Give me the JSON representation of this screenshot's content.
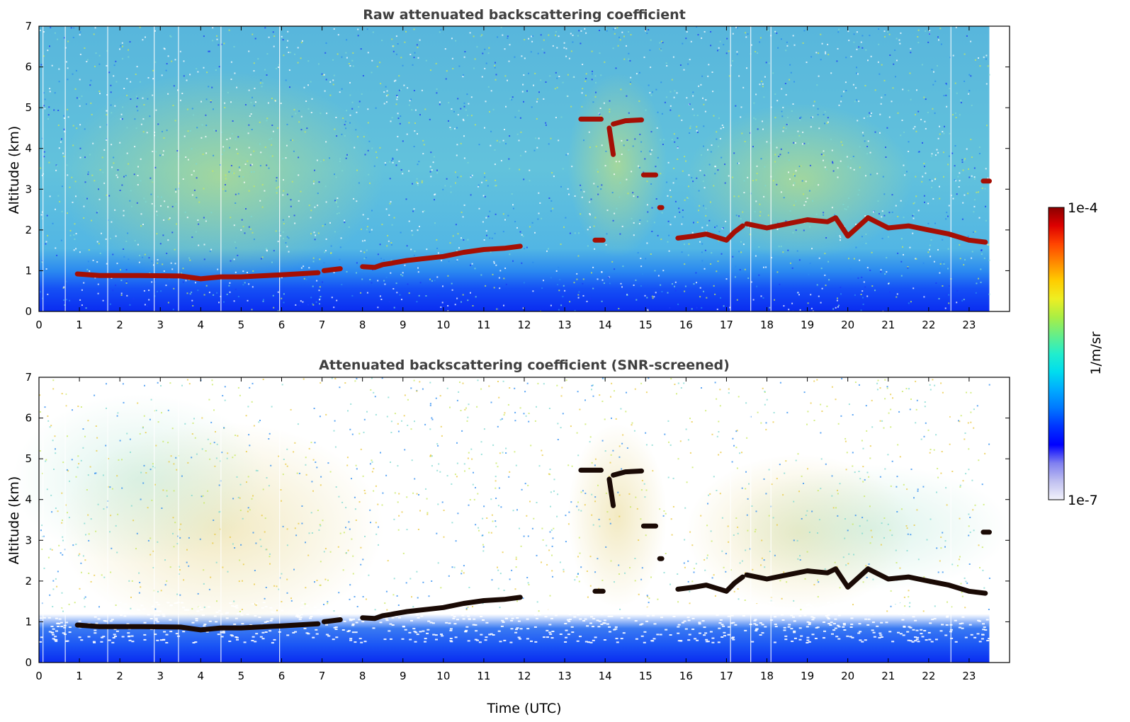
{
  "chart_data": [
    {
      "type": "heatmap",
      "title": "Raw attenuated backscattering coefficient",
      "xlabel": "",
      "ylabel": "Altitude (km)",
      "xlim": [
        0,
        24
      ],
      "ylim": [
        0,
        7
      ],
      "data_end_time": 23.5,
      "x_ticks": [
        "0",
        "1",
        "2",
        "3",
        "4",
        "5",
        "6",
        "7",
        "8",
        "9",
        "10",
        "11",
        "12",
        "13",
        "14",
        "15",
        "16",
        "17",
        "18",
        "19",
        "20",
        "21",
        "22",
        "23"
      ],
      "y_ticks": [
        "0",
        "1",
        "2",
        "3",
        "4",
        "5",
        "6",
        "7"
      ],
      "layer_color": "#a50f04",
      "layers": [
        {
          "x": [
            0.95,
            1.5,
            2.5,
            3.5,
            4.0,
            4.5,
            5.0,
            6.0,
            6.9
          ],
          "y": [
            0.92,
            0.88,
            0.88,
            0.87,
            0.8,
            0.85,
            0.85,
            0.9,
            0.95
          ]
        },
        {
          "x": [
            7.05,
            7.45
          ],
          "y": [
            1.0,
            1.05
          ]
        },
        {
          "x": [
            8.0,
            8.3,
            8.5,
            8.7,
            8.8,
            9.1,
            10.0,
            10.5,
            11.0,
            11.5,
            11.9
          ],
          "y": [
            1.1,
            1.08,
            1.15,
            1.18,
            1.2,
            1.25,
            1.35,
            1.45,
            1.52,
            1.55,
            1.6
          ]
        },
        {
          "x": [
            13.4,
            13.9
          ],
          "y": [
            4.72,
            4.72
          ]
        },
        {
          "x": [
            14.2,
            14.5,
            14.9
          ],
          "y": [
            4.6,
            4.68,
            4.7
          ]
        },
        {
          "x": [
            14.1,
            14.2
          ],
          "y": [
            4.5,
            3.85
          ]
        },
        {
          "x": [
            14.95,
            15.25
          ],
          "y": [
            3.35,
            3.35
          ]
        },
        {
          "x": [
            15.35,
            15.4
          ],
          "y": [
            2.55,
            2.55
          ]
        },
        {
          "x": [
            13.75,
            13.95
          ],
          "y": [
            1.75,
            1.75
          ]
        },
        {
          "x": [
            15.8,
            16.2,
            16.5,
            17.0,
            17.2,
            17.4
          ],
          "y": [
            1.8,
            1.85,
            1.9,
            1.75,
            1.95,
            2.1
          ]
        },
        {
          "x": [
            17.5,
            18.0,
            18.5,
            19.0,
            19.5,
            19.7,
            20.0,
            20.5,
            21.0,
            21.5,
            22.0,
            22.5,
            23.0,
            23.4
          ],
          "y": [
            2.15,
            2.05,
            2.15,
            2.25,
            2.2,
            2.3,
            1.85,
            2.3,
            2.05,
            2.1,
            2.0,
            1.9,
            1.75,
            1.7
          ]
        },
        {
          "x": [
            23.35,
            23.5
          ],
          "y": [
            3.2,
            3.2
          ]
        }
      ]
    },
    {
      "type": "heatmap",
      "title": "Attenuated backscattering coefficient (SNR-screened)",
      "xlabel": "Time (UTC)",
      "ylabel": "Altitude (km)",
      "xlim": [
        0,
        24
      ],
      "ylim": [
        0,
        7
      ],
      "data_end_time": 23.5,
      "x_ticks": [
        "0",
        "1",
        "2",
        "3",
        "4",
        "5",
        "6",
        "7",
        "8",
        "9",
        "10",
        "11",
        "12",
        "13",
        "14",
        "15",
        "16",
        "17",
        "18",
        "19",
        "20",
        "21",
        "22",
        "23"
      ],
      "y_ticks": [
        "0",
        "1",
        "2",
        "3",
        "4",
        "5",
        "6",
        "7"
      ],
      "layer_color": "#1a0a05",
      "layers": [
        {
          "x": [
            0.95,
            1.5,
            2.5,
            3.5,
            4.0,
            4.5,
            5.0,
            6.0,
            6.9
          ],
          "y": [
            0.92,
            0.88,
            0.88,
            0.87,
            0.8,
            0.85,
            0.85,
            0.9,
            0.95
          ]
        },
        {
          "x": [
            7.05,
            7.45
          ],
          "y": [
            1.0,
            1.05
          ]
        },
        {
          "x": [
            8.0,
            8.3,
            8.5,
            8.7,
            8.8,
            9.1,
            10.0,
            10.5,
            11.0,
            11.5,
            11.9
          ],
          "y": [
            1.1,
            1.08,
            1.15,
            1.18,
            1.2,
            1.25,
            1.35,
            1.45,
            1.52,
            1.55,
            1.6
          ]
        },
        {
          "x": [
            13.4,
            13.9
          ],
          "y": [
            4.72,
            4.72
          ]
        },
        {
          "x": [
            14.2,
            14.5,
            14.9
          ],
          "y": [
            4.6,
            4.68,
            4.7
          ]
        },
        {
          "x": [
            14.1,
            14.2
          ],
          "y": [
            4.5,
            3.85
          ]
        },
        {
          "x": [
            14.95,
            15.25
          ],
          "y": [
            3.35,
            3.35
          ]
        },
        {
          "x": [
            15.35,
            15.4
          ],
          "y": [
            2.55,
            2.55
          ]
        },
        {
          "x": [
            13.75,
            13.95
          ],
          "y": [
            1.75,
            1.75
          ]
        },
        {
          "x": [
            15.8,
            16.2,
            16.5,
            17.0,
            17.2,
            17.4
          ],
          "y": [
            1.8,
            1.85,
            1.9,
            1.75,
            1.95,
            2.1
          ]
        },
        {
          "x": [
            17.5,
            18.0,
            18.5,
            19.0,
            19.5,
            19.7,
            20.0,
            20.5,
            21.0,
            21.5,
            22.0,
            22.5,
            23.0,
            23.4
          ],
          "y": [
            2.15,
            2.05,
            2.15,
            2.25,
            2.2,
            2.3,
            1.85,
            2.3,
            2.05,
            2.1,
            2.0,
            1.9,
            1.75,
            1.7
          ]
        },
        {
          "x": [
            23.35,
            23.5
          ],
          "y": [
            3.2,
            3.2
          ]
        }
      ]
    }
  ],
  "colorbar": {
    "max_label": "1e-4",
    "min_label": "1e-7",
    "unit_label": "1/m/sr",
    "colormap": [
      "#f2f2fb",
      "#c0c0f0",
      "#8080f0",
      "#0000ff",
      "#0033ff",
      "#0077ff",
      "#00aaff",
      "#00ddee",
      "#22eecc",
      "#66ee88",
      "#aaee44",
      "#eeee22",
      "#ffcc00",
      "#ff8800",
      "#ff4400",
      "#dd0000",
      "#8b0000"
    ]
  }
}
